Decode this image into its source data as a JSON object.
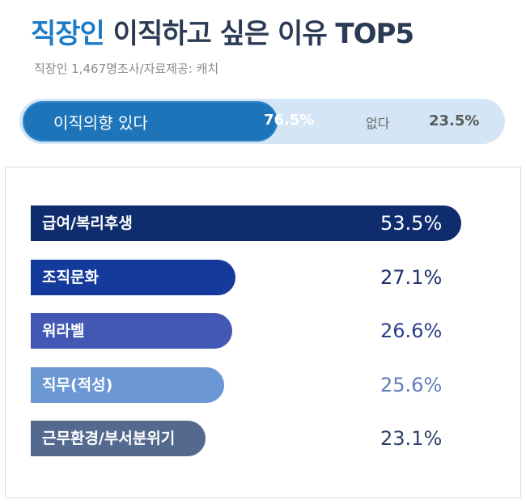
{
  "title": {
    "accent": "직장인",
    "rest": " 이직하고 싶은 이유 TOP5"
  },
  "subtitle": "직장인 1,467명조사/자료제공: 캐치",
  "intent": {
    "yes_label": "이직의향 있다",
    "yes_value": "76.5%",
    "no_label": "없다",
    "no_value": "23.5%",
    "yes_share": 0.765,
    "colors": {
      "yes": "#1e74b8",
      "no": "#d4e6f5"
    }
  },
  "chart_data": {
    "type": "bar",
    "orientation": "horizontal",
    "categories": [
      "급여/복리후생",
      "조직문화",
      "워라벨",
      "직무(적성)",
      "근무환경/부서분위기"
    ],
    "values": [
      53.5,
      27.1,
      26.6,
      25.6,
      23.1
    ],
    "value_labels": [
      "53.5%",
      "27.1%",
      "26.6%",
      "25.6%",
      "23.1%"
    ],
    "unit": "%",
    "colors": [
      "#0f2c6e",
      "#143a9b",
      "#4357b4",
      "#6b97d5",
      "#536a8e"
    ],
    "value_colors": [
      "#ffffff",
      "#1b2f6b",
      "#2c3f8f",
      "#5f7db8",
      "#2f4066"
    ]
  }
}
